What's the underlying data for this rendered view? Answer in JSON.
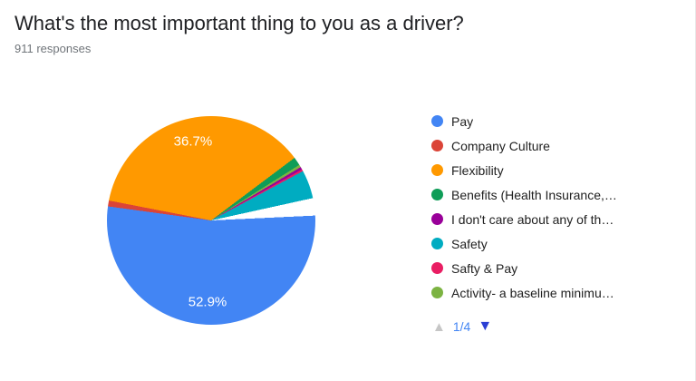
{
  "header": {
    "title": "What's the most important thing to you as a driver?",
    "responses": "911 responses"
  },
  "chart_data": {
    "type": "pie",
    "title": "What's the most important thing to you as a driver?",
    "legend_position": "right",
    "slices": [
      {
        "label": "Pay",
        "value": 52.9,
        "color": "#4285f4",
        "pct_label": "52.9%"
      },
      {
        "label": "Company Culture",
        "value": 0.9,
        "color": "#db4437"
      },
      {
        "label": "Flexibility",
        "value": 36.7,
        "color": "#ff9900",
        "pct_label": "36.7%"
      },
      {
        "label": "Benefits (Health Insurance,…",
        "value": 1.3,
        "color": "#0f9d58"
      },
      {
        "label": "I don't care about any of th…",
        "value": 0.4,
        "color": "#990099"
      },
      {
        "label": "Safety",
        "value": 4.4,
        "color": "#00acc1"
      },
      {
        "label": "Safty & Pay",
        "value": 0.3,
        "color": "#e91e63"
      },
      {
        "label": "Activity- a baseline minimu…",
        "value": 0.4,
        "color": "#7cb342"
      }
    ],
    "render": {
      "start_angle_deg": -79,
      "order": [
        2,
        3,
        7,
        4,
        6,
        5,
        -1,
        0,
        1
      ],
      "filler": {
        "value": 2.7,
        "color": "#ffffff"
      }
    }
  },
  "pagination": {
    "label": "1/4",
    "up_icon": "▲",
    "down_icon": "▼"
  }
}
